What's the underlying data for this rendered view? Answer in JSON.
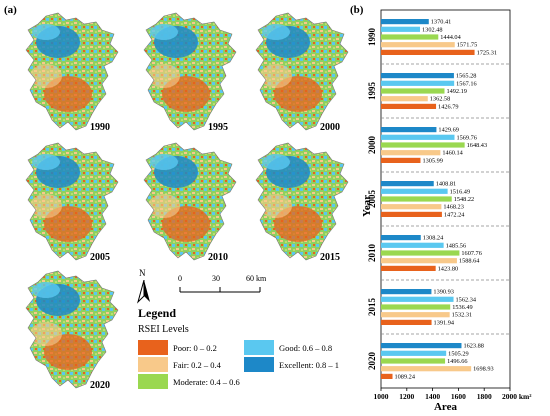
{
  "panel_a_label": "(a)",
  "panel_b_label": "(b)",
  "maps": [
    {
      "year": "1990"
    },
    {
      "year": "1995"
    },
    {
      "year": "2000"
    },
    {
      "year": "2005"
    },
    {
      "year": "2010"
    },
    {
      "year": "2015"
    },
    {
      "year": "2020"
    }
  ],
  "north_label": "N",
  "scale": {
    "ticks": [
      "0",
      "30",
      "60 km"
    ]
  },
  "legend": {
    "title": "Legend",
    "subtitle": "RSEI Levels",
    "items": [
      {
        "label": "Poor: 0 – 0.2",
        "color": "#e8621c"
      },
      {
        "label": "Good: 0.6 – 0.8",
        "color": "#5ac8f0"
      },
      {
        "label": "Fair: 0.2 – 0.4",
        "color": "#f8c98a"
      },
      {
        "label": "Excellent: 0.8 – 1",
        "color": "#1d88c8"
      },
      {
        "label": "Moderate: 0.4 – 0.6",
        "color": "#9ad850"
      }
    ]
  },
  "chart_data": {
    "type": "bar",
    "orientation": "horizontal",
    "xlabel": "Area",
    "ylabel": "Year",
    "x_unit": "km²",
    "xlim": [
      1000,
      2000
    ],
    "x_ticks": [
      "1000",
      "1200",
      "1400",
      "1600",
      "1800",
      "2000"
    ],
    "x_tick_unit_label": "2000 km²",
    "categories": [
      "1990",
      "1995",
      "2000",
      "2005",
      "2010",
      "2015",
      "2020"
    ],
    "series_order": [
      "Excellent",
      "Good",
      "Moderate",
      "Fair",
      "Poor"
    ],
    "series_colors": [
      "#1d88c8",
      "#5ac8f0",
      "#9ad850",
      "#f8c98a",
      "#e8621c"
    ],
    "values": [
      [
        1370.41,
        1302.48,
        1444.04,
        1571.75,
        1725.31
      ],
      [
        1565.28,
        1567.16,
        1492.19,
        1362.58,
        1426.79
      ],
      [
        1429.69,
        1569.76,
        1648.43,
        1460.14,
        1305.99
      ],
      [
        1408.81,
        1516.49,
        1548.22,
        1468.23,
        1472.24
      ],
      [
        1308.24,
        1485.56,
        1607.76,
        1588.64,
        1423.8
      ],
      [
        1390.93,
        1562.34,
        1536.49,
        1532.31,
        1391.94
      ],
      [
        1623.88,
        1505.29,
        1496.66,
        1698.93,
        1089.24
      ]
    ],
    "value_labels": [
      [
        "1370.41",
        "1302.48",
        "1444.04",
        "1571.75",
        "1725.31"
      ],
      [
        "1565.28",
        "1567.16",
        "1492.19",
        "1362.58",
        "1426.79"
      ],
      [
        "1429.69",
        "1569.76",
        "1648.43",
        "1460.14",
        "1305.99"
      ],
      [
        "1408.81",
        "1516.49",
        "1548.22",
        "1468.23",
        "1472.24"
      ],
      [
        "1308.24",
        "1485.56",
        "1607.76",
        "1588.64",
        "1423.80"
      ],
      [
        "1390.93",
        "1562.34",
        "1536.49",
        "1532.31",
        "1391.94"
      ],
      [
        "1623.88",
        "1505.29",
        "1496.66",
        "1698.93",
        "1089.24"
      ]
    ],
    "grid": false
  }
}
